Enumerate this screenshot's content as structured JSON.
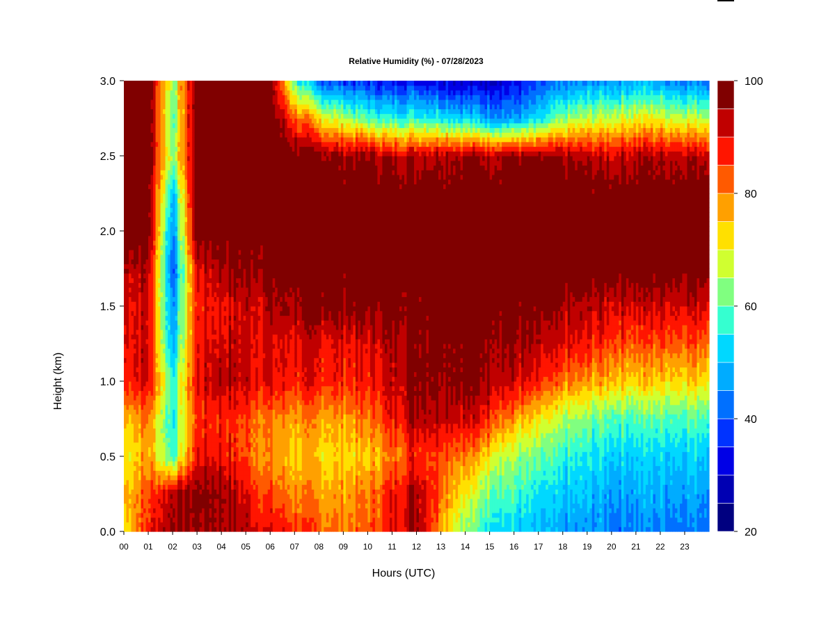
{
  "chart_data": {
    "type": "heatmap",
    "title": "Relative Humidity (%) - 07/28/2023",
    "xlabel": "Hours (UTC)",
    "ylabel": "Height (km)",
    "xlim": [
      0,
      24
    ],
    "ylim": [
      0.0,
      3.0
    ],
    "x_ticks": [
      "00",
      "01",
      "02",
      "03",
      "04",
      "05",
      "06",
      "07",
      "08",
      "09",
      "10",
      "11",
      "12",
      "13",
      "14",
      "15",
      "16",
      "17",
      "18",
      "19",
      "20",
      "21",
      "22",
      "23"
    ],
    "y_ticks": [
      "0.0",
      "0.5",
      "1.0",
      "1.5",
      "2.0",
      "2.5",
      "3.0"
    ],
    "colorbar": {
      "min": 20,
      "max": 100,
      "step": 5,
      "tick_labels": [
        "20",
        "40",
        "60",
        "80",
        "100"
      ],
      "levels": [
        {
          "from": 20,
          "to": 25,
          "color": "#000080"
        },
        {
          "from": 25,
          "to": 30,
          "color": "#0000b3"
        },
        {
          "from": 30,
          "to": 35,
          "color": "#0000e6"
        },
        {
          "from": 35,
          "to": 40,
          "color": "#0033ff"
        },
        {
          "from": 40,
          "to": 45,
          "color": "#0070ff"
        },
        {
          "from": 45,
          "to": 50,
          "color": "#00acff"
        },
        {
          "from": 50,
          "to": 55,
          "color": "#00d8ff"
        },
        {
          "from": 55,
          "to": 60,
          "color": "#35ffd0"
        },
        {
          "from": 60,
          "to": 65,
          "color": "#80ff80"
        },
        {
          "from": 65,
          "to": 70,
          "color": "#d0ff30"
        },
        {
          "from": 70,
          "to": 75,
          "color": "#ffe000"
        },
        {
          "from": 75,
          "to": 80,
          "color": "#ffa000"
        },
        {
          "from": 80,
          "to": 85,
          "color": "#ff5a00"
        },
        {
          "from": 85,
          "to": 90,
          "color": "#ff1500"
        },
        {
          "from": 90,
          "to": 95,
          "color": "#c00000"
        },
        {
          "from": 95,
          "to": 100,
          "color": "#800000"
        }
      ]
    },
    "heights_km": [
      0.0,
      0.25,
      0.5,
      0.75,
      1.0,
      1.25,
      1.5,
      1.75,
      2.0,
      2.25,
      2.5,
      2.75,
      3.0
    ],
    "hours": [
      0,
      1,
      2,
      3,
      4,
      5,
      6,
      7,
      8,
      9,
      10,
      11,
      12,
      13,
      14,
      15,
      16,
      17,
      18,
      19,
      20,
      21,
      22,
      23,
      24
    ],
    "values": [
      [
        72,
        88,
        97,
        96,
        96,
        94,
        90,
        86,
        83,
        81,
        82,
        88,
        96,
        80,
        62,
        56,
        52,
        48,
        45,
        45,
        44,
        44,
        44,
        44,
        44
      ],
      [
        76,
        84,
        95,
        97,
        97,
        90,
        84,
        80,
        78,
        78,
        80,
        88,
        96,
        84,
        70,
        62,
        58,
        52,
        50,
        50,
        48,
        48,
        48,
        48,
        48
      ],
      [
        70,
        78,
        58,
        90,
        90,
        84,
        78,
        74,
        73,
        73,
        74,
        80,
        88,
        86,
        80,
        72,
        64,
        60,
        56,
        54,
        52,
        52,
        52,
        52,
        52
      ],
      [
        76,
        80,
        55,
        86,
        88,
        84,
        80,
        78,
        78,
        78,
        80,
        88,
        95,
        94,
        92,
        88,
        78,
        70,
        64,
        62,
        60,
        60,
        60,
        60,
        60
      ],
      [
        88,
        92,
        58,
        90,
        95,
        92,
        90,
        88,
        88,
        88,
        88,
        92,
        98,
        98,
        98,
        96,
        92,
        86,
        80,
        78,
        76,
        74,
        74,
        74,
        74
      ],
      [
        90,
        92,
        48,
        88,
        92,
        92,
        90,
        90,
        90,
        90,
        90,
        94,
        98,
        99,
        99,
        98,
        96,
        92,
        90,
        88,
        86,
        84,
        84,
        84,
        84
      ],
      [
        90,
        92,
        45,
        88,
        90,
        92,
        94,
        96,
        98,
        98,
        98,
        99,
        99,
        100,
        100,
        100,
        98,
        96,
        94,
        93,
        92,
        92,
        92,
        92,
        92
      ],
      [
        94,
        95,
        40,
        90,
        96,
        97,
        98,
        99,
        100,
        100,
        100,
        100,
        100,
        100,
        100,
        100,
        100,
        100,
        100,
        100,
        100,
        100,
        100,
        100,
        100
      ],
      [
        100,
        100,
        45,
        100,
        100,
        100,
        100,
        100,
        100,
        100,
        100,
        100,
        100,
        100,
        100,
        100,
        100,
        100,
        100,
        100,
        100,
        100,
        100,
        100,
        100
      ],
      [
        100,
        100,
        50,
        100,
        100,
        100,
        100,
        100,
        100,
        100,
        100,
        100,
        100,
        100,
        100,
        100,
        100,
        100,
        100,
        100,
        100,
        100,
        100,
        100,
        100
      ],
      [
        100,
        100,
        64,
        100,
        100,
        100,
        100,
        100,
        98,
        96,
        96,
        94,
        94,
        96,
        96,
        96,
        96,
        95,
        94,
        93,
        92,
        94,
        94,
        94,
        94
      ],
      [
        100,
        100,
        60,
        100,
        100,
        100,
        100,
        84,
        72,
        66,
        60,
        56,
        58,
        56,
        52,
        48,
        46,
        52,
        62,
        66,
        68,
        70,
        70,
        68,
        68
      ],
      [
        100,
        100,
        64,
        100,
        100,
        100,
        100,
        60,
        42,
        38,
        36,
        34,
        35,
        32,
        30,
        30,
        32,
        36,
        42,
        44,
        46,
        48,
        46,
        44,
        44
      ]
    ]
  }
}
